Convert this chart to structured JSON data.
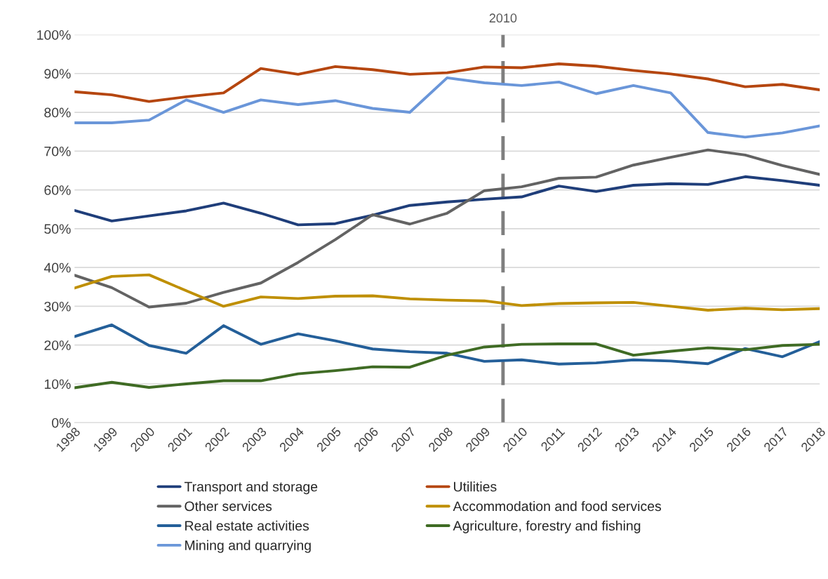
{
  "chart_data": {
    "type": "line",
    "x": [
      1998,
      1999,
      2000,
      2001,
      2002,
      2003,
      2004,
      2005,
      2006,
      2007,
      2008,
      2009,
      2010,
      2011,
      2012,
      2013,
      2014,
      2015,
      2016,
      2017,
      2018
    ],
    "xlim": [
      1998,
      2018
    ],
    "xticks": [
      1998,
      1999,
      2000,
      2001,
      2002,
      2003,
      2004,
      2005,
      2006,
      2007,
      2008,
      2009,
      2010,
      2011,
      2012,
      2013,
      2014,
      2015,
      2016,
      2017,
      2018
    ],
    "ylim": [
      0,
      100
    ],
    "yticks": [
      {
        "value": 0,
        "label": "0%"
      },
      {
        "value": 10,
        "label": "10%"
      },
      {
        "value": 20,
        "label": "20%"
      },
      {
        "value": 30,
        "label": "30%"
      },
      {
        "value": 40,
        "label": "40%"
      },
      {
        "value": 50,
        "label": "50%"
      },
      {
        "value": 60,
        "label": "60%"
      },
      {
        "value": 70,
        "label": "70%"
      },
      {
        "value": 80,
        "label": "80%"
      },
      {
        "value": 90,
        "label": "90%"
      },
      {
        "value": 100,
        "label": "100%"
      }
    ],
    "grid": "y",
    "legend": "bottom",
    "marker": "none",
    "line_style": "solid",
    "ref_lines": [
      {
        "axis": "x",
        "value": 2009.5,
        "label": "2010",
        "color": "#7f7f7f",
        "line_style": "dashed"
      }
    ],
    "series": [
      {
        "name": "Transport and storage",
        "color": "#1f3e7a",
        "values": [
          54.7,
          52,
          53.3,
          54.6,
          56.6,
          54,
          51,
          51.3,
          53.5,
          56,
          56.9,
          57.6,
          58.2,
          61,
          59.6,
          61.2,
          61.6,
          61.4,
          63.4,
          62.4,
          61.2
        ]
      },
      {
        "name": "Utilities",
        "color": "#b5460f",
        "values": [
          85.3,
          84.5,
          82.8,
          84,
          85,
          91.3,
          89.8,
          91.8,
          91,
          89.8,
          90.2,
          91.7,
          91.5,
          92.5,
          91.9,
          90.8,
          89.9,
          88.6,
          86.6,
          87.2,
          85.8
        ]
      },
      {
        "name": "Other services",
        "color": "#636363",
        "values": [
          38,
          34.8,
          29.8,
          30.8,
          33.6,
          36,
          41.3,
          47.2,
          53.6,
          51.2,
          54,
          59.8,
          60.8,
          63,
          63.3,
          66.4,
          68.4,
          70.3,
          69,
          66.3,
          64
        ]
      },
      {
        "name": "Accommodation and food services",
        "color": "#bf8f00",
        "values": [
          34.7,
          37.7,
          38.1,
          34,
          30,
          32.4,
          32,
          32.6,
          32.7,
          31.9,
          31.6,
          31.4,
          30.2,
          30.7,
          30.9,
          31,
          30,
          29,
          29.5,
          29.1,
          29.4
        ]
      },
      {
        "name": "Real estate activities",
        "color": "#245f99",
        "values": [
          22.2,
          25.2,
          19.9,
          17.9,
          25,
          20.2,
          22.9,
          21.1,
          19,
          18.3,
          17.9,
          15.8,
          16.2,
          15.1,
          15.4,
          16.2,
          15.9,
          15.2,
          19.1,
          17,
          20.9
        ]
      },
      {
        "name": "Agriculture, forestry and fishing",
        "color": "#3f6b24",
        "values": [
          9,
          10.4,
          9.1,
          10,
          10.8,
          10.8,
          12.6,
          13.4,
          14.4,
          14.3,
          17.4,
          19.5,
          20.2,
          20.3,
          20.3,
          17.4,
          18.4,
          19.3,
          18.8,
          19.9,
          20.2
        ]
      },
      {
        "name": "Mining and quarrying",
        "color": "#6a96d9",
        "values": [
          77.3,
          77.3,
          78,
          83.2,
          80,
          83.2,
          82,
          83,
          81,
          80,
          88.9,
          87.6,
          86.9,
          87.8,
          84.8,
          86.9,
          85,
          74.8,
          73.6,
          74.7,
          76.5
        ]
      }
    ]
  }
}
